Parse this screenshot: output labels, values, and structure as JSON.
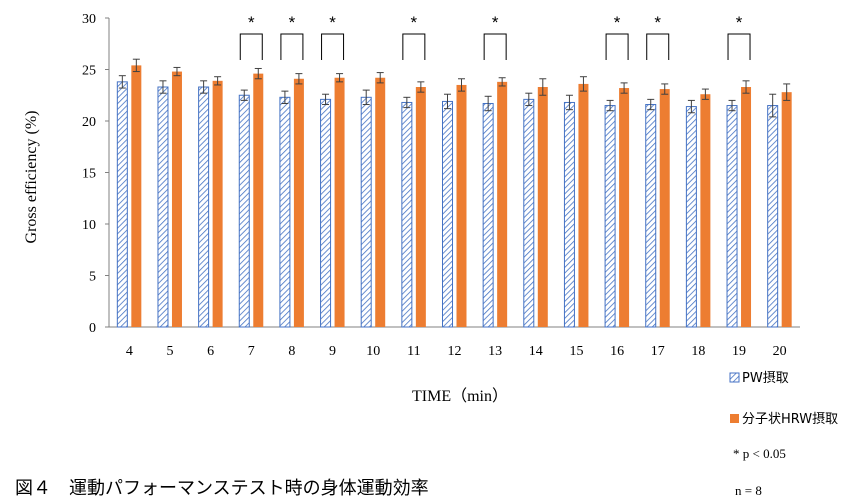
{
  "chart_data": {
    "type": "bar",
    "xlabel": "TIME（min）",
    "ylabel": "Gross efficiency (%)",
    "ylim": [
      0,
      30
    ],
    "yticks": [
      0,
      5,
      10,
      15,
      20,
      25,
      30
    ],
    "categories": [
      "4",
      "5",
      "6",
      "7",
      "8",
      "9",
      "10",
      "11",
      "12",
      "13",
      "14",
      "15",
      "16",
      "17",
      "18",
      "19",
      "20"
    ],
    "series": [
      {
        "name": "PW摂取",
        "pattern": "diagonal-hatch",
        "color": "#4472C4",
        "values": [
          23.8,
          23.3,
          23.3,
          22.5,
          22.3,
          22.1,
          22.3,
          21.8,
          21.9,
          21.7,
          22.1,
          21.8,
          21.5,
          21.6,
          21.4,
          21.5,
          21.5
        ],
        "errors": [
          0.6,
          0.6,
          0.6,
          0.5,
          0.6,
          0.5,
          0.7,
          0.5,
          0.7,
          0.7,
          0.6,
          0.7,
          0.5,
          0.5,
          0.6,
          0.5,
          1.1
        ]
      },
      {
        "name": "分子状HRW摂取",
        "pattern": "solid",
        "color": "#ED7D31",
        "values": [
          25.4,
          24.8,
          23.9,
          24.6,
          24.1,
          24.2,
          24.2,
          23.3,
          23.5,
          23.8,
          23.3,
          23.6,
          23.2,
          23.1,
          22.6,
          23.3,
          22.8
        ],
        "errors": [
          0.6,
          0.4,
          0.4,
          0.5,
          0.5,
          0.4,
          0.5,
          0.5,
          0.6,
          0.4,
          0.8,
          0.7,
          0.5,
          0.5,
          0.5,
          0.6,
          0.8
        ]
      }
    ],
    "significant_categories": [
      "7",
      "8",
      "9",
      "11",
      "13",
      "16",
      "17",
      "19"
    ],
    "significance_mark": "*",
    "legend_placement": "bottom-right",
    "grid": false
  },
  "notes": {
    "significance": "* p < 0.05",
    "n": "n = 8"
  },
  "caption": "図４　運動パフォーマンステスト時の身体運動効率"
}
